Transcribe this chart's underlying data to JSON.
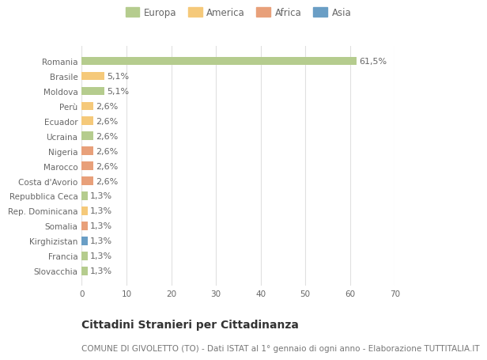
{
  "categories": [
    "Slovacchia",
    "Francia",
    "Kirghizistan",
    "Somalia",
    "Rep. Dominicana",
    "Repubblica Ceca",
    "Costa d'Avorio",
    "Marocco",
    "Nigeria",
    "Ucraina",
    "Ecuador",
    "Perù",
    "Moldova",
    "Brasile",
    "Romania"
  ],
  "values": [
    1.3,
    1.3,
    1.3,
    1.3,
    1.3,
    1.3,
    2.6,
    2.6,
    2.6,
    2.6,
    2.6,
    2.6,
    5.1,
    5.1,
    61.5
  ],
  "labels": [
    "1,3%",
    "1,3%",
    "1,3%",
    "1,3%",
    "1,3%",
    "1,3%",
    "2,6%",
    "2,6%",
    "2,6%",
    "2,6%",
    "2,6%",
    "2,6%",
    "5,1%",
    "5,1%",
    "61,5%"
  ],
  "colors": [
    "#b5cc8e",
    "#b5cc8e",
    "#6a9ec5",
    "#e8a07a",
    "#f5c97a",
    "#b5cc8e",
    "#e8a07a",
    "#e8a07a",
    "#e8a07a",
    "#b5cc8e",
    "#f5c97a",
    "#f5c97a",
    "#b5cc8e",
    "#f5c97a",
    "#b5cc8e"
  ],
  "legend_labels": [
    "Europa",
    "America",
    "Africa",
    "Asia"
  ],
  "legend_colors": [
    "#b5cc8e",
    "#f5c97a",
    "#e8a07a",
    "#6a9ec5"
  ],
  "title": "Cittadini Stranieri per Cittadinanza",
  "subtitle": "COMUNE DI GIVOLETTO (TO) - Dati ISTAT al 1° gennaio di ogni anno - Elaborazione TUTTITALIA.IT",
  "xlim": [
    0,
    70
  ],
  "xticks": [
    0,
    10,
    20,
    30,
    40,
    50,
    60,
    70
  ],
  "background_color": "#ffffff",
  "grid_color": "#e0e0e0",
  "bar_height": 0.55,
  "title_fontsize": 10,
  "subtitle_fontsize": 7.5,
  "label_fontsize": 8,
  "tick_fontsize": 7.5,
  "legend_fontsize": 8.5
}
